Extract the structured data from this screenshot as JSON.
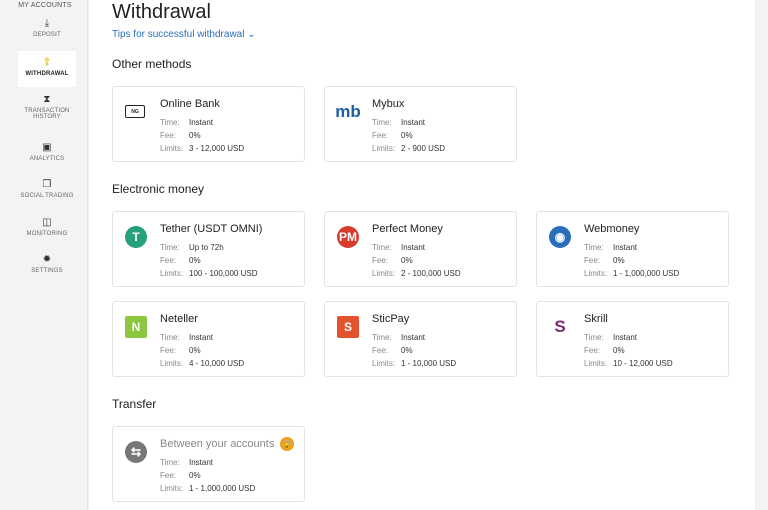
{
  "sidebar": {
    "items": [
      {
        "label": "MY ACCOUNTS",
        "icon": "accounts-icon"
      },
      {
        "label": "DEPOSIT",
        "icon": "download-icon"
      },
      {
        "label": "WITHDRAWAL",
        "icon": "upload-icon",
        "active": true
      },
      {
        "label": "TRANSACTION HISTORY",
        "icon": "hourglass-icon"
      },
      {
        "label": "ANALYTICS",
        "icon": "analytics-icon"
      },
      {
        "label": "SOCIAL TRADING",
        "icon": "copy-icon"
      },
      {
        "label": "MONITORING",
        "icon": "monitor-icon"
      },
      {
        "label": "SETTINGS",
        "icon": "gear-icon"
      }
    ]
  },
  "page": {
    "title": "Withdrawal",
    "tips": "Tips for successful withdrawal"
  },
  "labels": {
    "time": "Time:",
    "fee": "Fee:",
    "limits": "Limits:"
  },
  "sections": [
    {
      "title": "Other methods",
      "methods": [
        {
          "name": "Online Bank",
          "time": "Instant",
          "fee": "0%",
          "limits": "3 - 12,000 USD"
        },
        {
          "name": "Mybux",
          "time": "Instant",
          "fee": "0%",
          "limits": "2 - 900 USD"
        }
      ]
    },
    {
      "title": "Electronic money",
      "methods": [
        {
          "name": "Tether (USDT OMNI)",
          "time": "Up to 72h",
          "fee": "0%",
          "limits": "100 - 100,000 USD"
        },
        {
          "name": "Perfect Money",
          "time": "Instant",
          "fee": "0%",
          "limits": "2 - 100,000 USD"
        },
        {
          "name": "Webmoney",
          "time": "Instant",
          "fee": "0%",
          "limits": "1 - 1,000,000 USD"
        },
        {
          "name": "Neteller",
          "time": "Instant",
          "fee": "0%",
          "limits": "4 - 10,000 USD"
        },
        {
          "name": "SticPay",
          "time": "Instant",
          "fee": "0%",
          "limits": "1 - 10,000 USD"
        },
        {
          "name": "Skrill",
          "time": "Instant",
          "fee": "0%",
          "limits": "10 - 12,000 USD"
        }
      ]
    },
    {
      "title": "Transfer",
      "methods": [
        {
          "name": "Between your accounts",
          "time": "Instant",
          "fee": "0%",
          "limits": "1 - 1,000,000 USD",
          "locked": true
        }
      ]
    }
  ],
  "logos": {
    "online_bank": "NG",
    "mybux": "mb",
    "perfect_money": "PM",
    "neteller": "N",
    "sticpay": "S",
    "skrill": "S",
    "tether": "T"
  }
}
